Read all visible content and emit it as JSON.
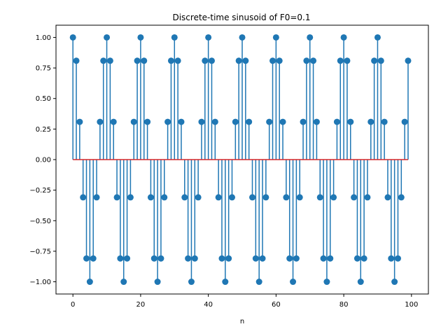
{
  "chart_data": {
    "type": "stem",
    "title": "Discrete-time sinusoid of F0=0.1",
    "xlabel": "n",
    "ylabel": "",
    "xlim": [
      -5,
      105
    ],
    "ylim": [
      -1.1,
      1.1
    ],
    "x_ticks": [
      0,
      20,
      40,
      60,
      80,
      100
    ],
    "y_ticks": [
      -1.0,
      -0.75,
      -0.5,
      -0.25,
      0.0,
      0.25,
      0.5,
      0.75,
      1.0
    ],
    "grid": false,
    "baseline": 0,
    "series": [
      {
        "x": [
          0,
          1,
          2,
          3,
          4,
          5,
          6,
          7,
          8,
          9,
          10,
          11,
          12,
          13,
          14,
          15,
          16,
          17,
          18,
          19,
          20,
          21,
          22,
          23,
          24,
          25,
          26,
          27,
          28,
          29,
          30,
          31,
          32,
          33,
          34,
          35,
          36,
          37,
          38,
          39,
          40,
          41,
          42,
          43,
          44,
          45,
          46,
          47,
          48,
          49,
          50,
          51,
          52,
          53,
          54,
          55,
          56,
          57,
          58,
          59,
          60,
          61,
          62,
          63,
          64,
          65,
          66,
          67,
          68,
          69,
          70,
          71,
          72,
          73,
          74,
          75,
          76,
          77,
          78,
          79,
          80,
          81,
          82,
          83,
          84,
          85,
          86,
          87,
          88,
          89,
          90,
          91,
          92,
          93,
          94,
          95,
          96,
          97,
          98,
          99
        ],
        "values": [
          1.0,
          0.809,
          0.309,
          -0.309,
          -0.809,
          -1.0,
          -0.809,
          -0.309,
          0.309,
          0.809,
          1.0,
          0.809,
          0.309,
          -0.309,
          -0.809,
          -1.0,
          -0.809,
          -0.309,
          0.309,
          0.809,
          1.0,
          0.809,
          0.309,
          -0.309,
          -0.809,
          -1.0,
          -0.809,
          -0.309,
          0.309,
          0.809,
          1.0,
          0.809,
          0.309,
          -0.309,
          -0.809,
          -1.0,
          -0.809,
          -0.309,
          0.309,
          0.809,
          1.0,
          0.809,
          0.309,
          -0.309,
          -0.809,
          -1.0,
          -0.809,
          -0.309,
          0.309,
          0.809,
          1.0,
          0.809,
          0.309,
          -0.309,
          -0.809,
          -1.0,
          -0.809,
          -0.309,
          0.309,
          0.809,
          1.0,
          0.809,
          0.309,
          -0.309,
          -0.809,
          -1.0,
          -0.809,
          -0.309,
          0.309,
          0.809,
          1.0,
          0.809,
          0.309,
          -0.309,
          -0.809,
          -1.0,
          -0.809,
          -0.309,
          0.309,
          0.809,
          1.0,
          0.809,
          0.309,
          -0.309,
          -0.809,
          -1.0,
          -0.809,
          -0.309,
          0.309,
          0.809,
          1.0,
          0.809,
          0.309,
          -0.309,
          -0.809,
          -1.0,
          -0.809,
          -0.309,
          0.309,
          0.809
        ]
      }
    ],
    "colors": {
      "stem": "#1f77b4",
      "baseline": "#d62728",
      "axes": "#000000"
    }
  }
}
